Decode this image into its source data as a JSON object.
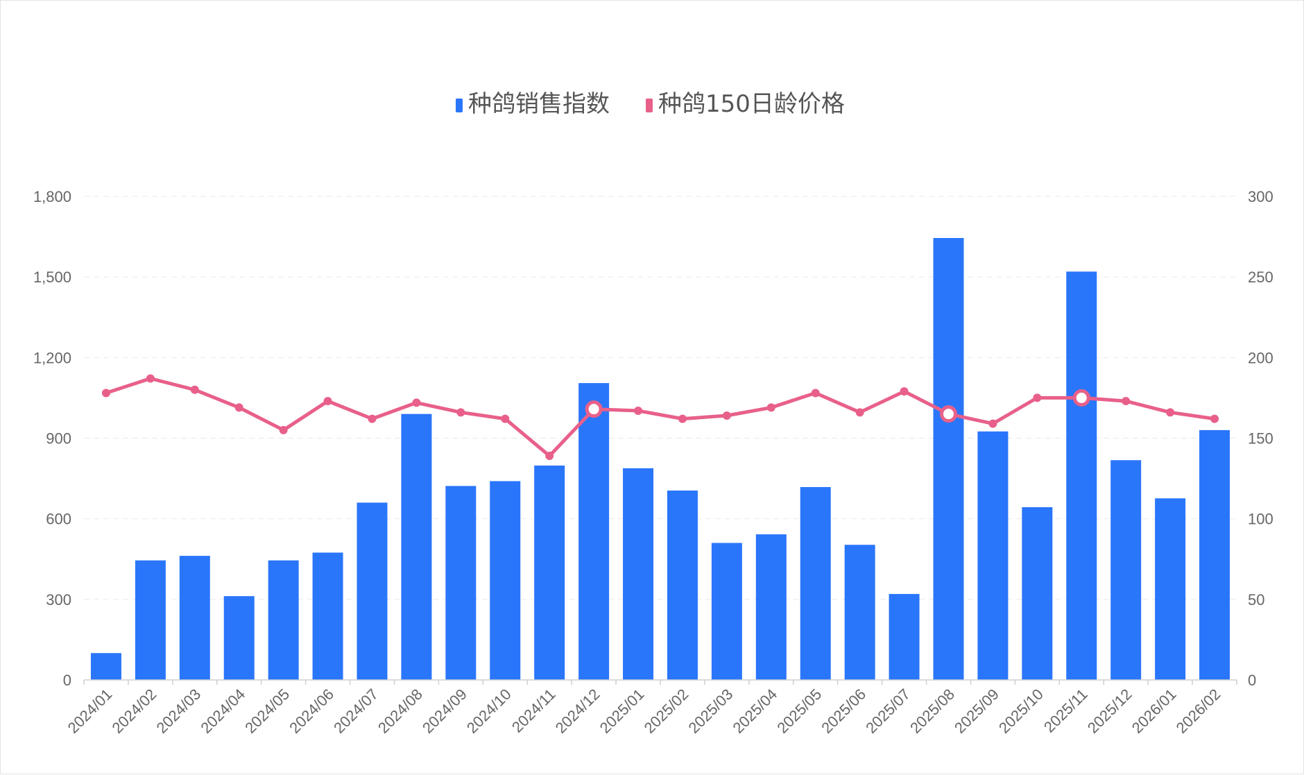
{
  "chart_data": {
    "type": "bar",
    "title": "",
    "xlabel": "",
    "ylabel": "",
    "categories": [
      "2024/01",
      "2024/02",
      "2024/03",
      "2024/04",
      "2024/05",
      "2024/06",
      "2024/07",
      "2024/08",
      "2024/09",
      "2024/10",
      "2024/11",
      "2024/12",
      "2025/01",
      "2025/02",
      "2025/03",
      "2025/04",
      "2025/05",
      "2025/06",
      "2025/07",
      "2025/08",
      "2025/09",
      "2025/10",
      "2025/11",
      "2025/12",
      "2026/01",
      "2026/02"
    ],
    "legend_position": "top-center",
    "grid": true,
    "y_left": {
      "min": 0,
      "max": 1800,
      "ticks": [
        0,
        300,
        600,
        900,
        1200,
        1500,
        1800
      ],
      "tick_labels": [
        "0",
        "300",
        "600",
        "900",
        "1,200",
        "1,500",
        "1,800"
      ]
    },
    "y_right": {
      "min": 0,
      "max": 300,
      "ticks": [
        0,
        50,
        100,
        150,
        200,
        250,
        300
      ],
      "tick_labels": [
        "0",
        "50",
        "100",
        "150",
        "200",
        "250",
        "300"
      ]
    },
    "series": [
      {
        "name": "种鸽销售指数",
        "type": "bar",
        "axis": "left",
        "color": "#2a76fb",
        "values": [
          100,
          445,
          462,
          312,
          445,
          474,
          660,
          990,
          722,
          740,
          798,
          1105,
          788,
          705,
          510,
          542,
          718,
          503,
          320,
          1645,
          925,
          643,
          1520,
          818,
          676,
          930
        ]
      },
      {
        "name": "种鸽150日龄价格",
        "type": "line",
        "axis": "right",
        "color": "#e8608a",
        "values": [
          178,
          187,
          180,
          169,
          155,
          173,
          162,
          172,
          166,
          162,
          139,
          168,
          167,
          162,
          164,
          169,
          178,
          166,
          179,
          165,
          159,
          175,
          175,
          173,
          166,
          162
        ],
        "highlighted_points": [
          "2024/12",
          "2025/08",
          "2025/11"
        ]
      }
    ]
  }
}
